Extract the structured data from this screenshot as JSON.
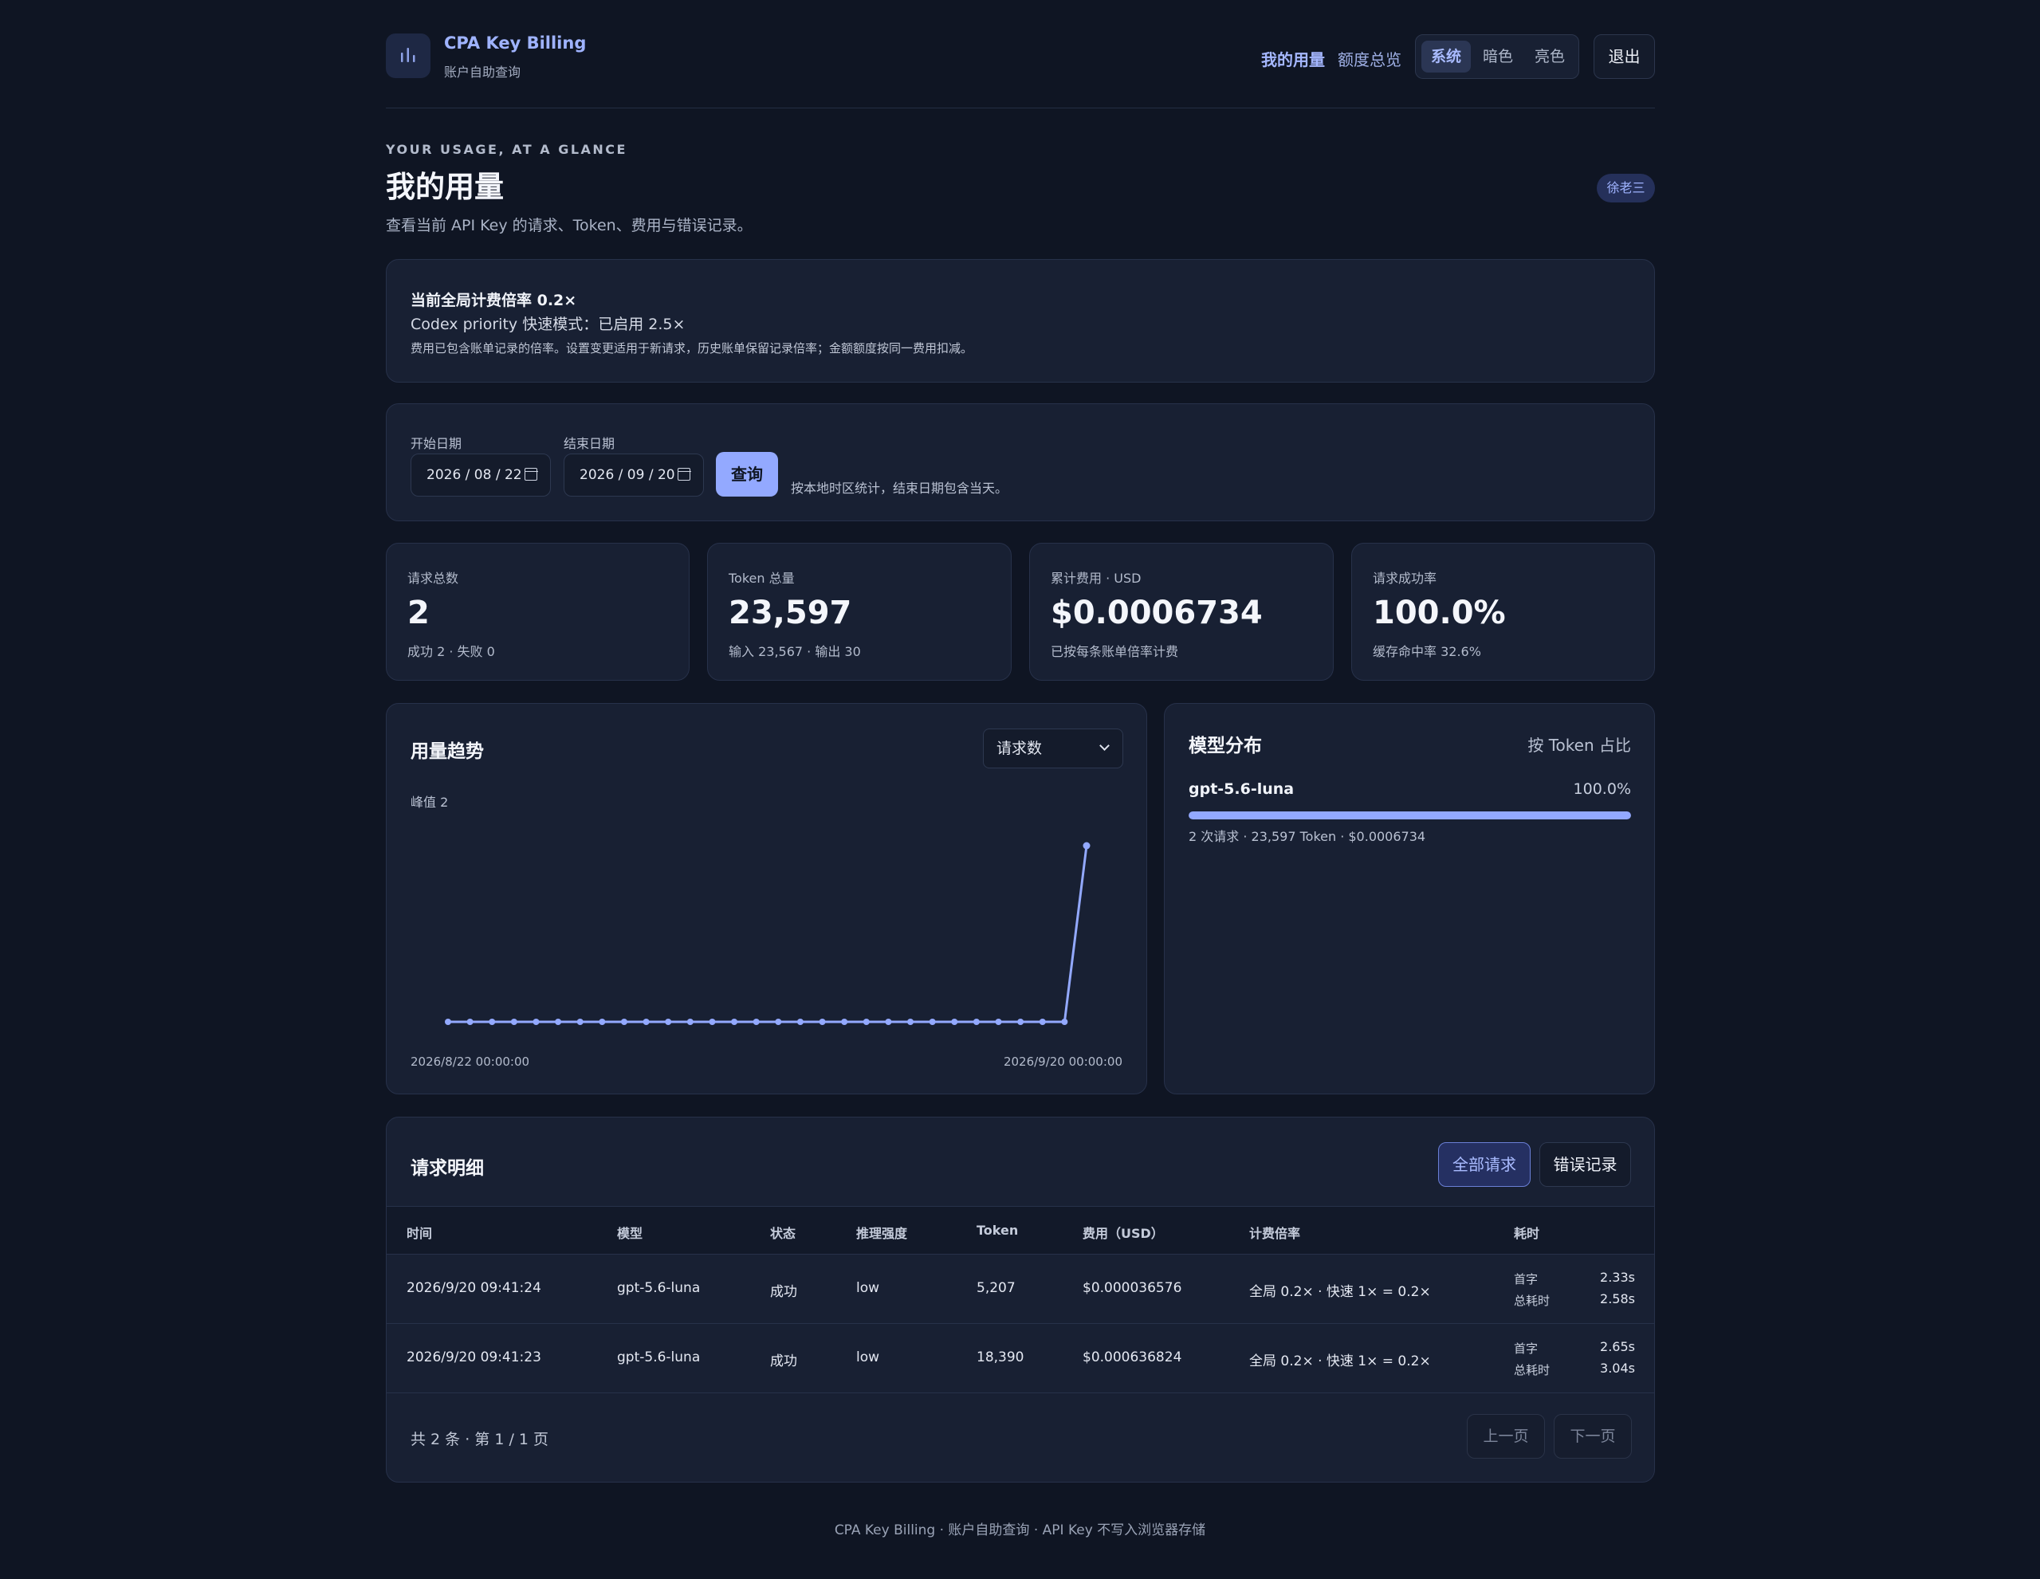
{
  "header": {
    "brand": "CPA Key Billing",
    "brand_sub": "账户自助查询",
    "nav": {
      "active": "我的用量",
      "overview": "额度总览"
    },
    "theme": {
      "system": "系统",
      "dark": "暗色",
      "light": "亮色"
    },
    "logout": "退出"
  },
  "hero": {
    "eyebrow": "YOUR USAGE, AT A GLANCE",
    "title": "我的用量",
    "subtitle": "查看当前 API Key 的请求、Token、费用与错误记录。",
    "user": "徐老三"
  },
  "rate": {
    "title": "当前全局计费倍率 0.2×",
    "priority": "Codex priority 快速模式：已启用 2.5×",
    "note": "费用已包含账单记录的倍率。设置变更适用于新请求，历史账单保留记录倍率；金额额度按同一费用扣减。"
  },
  "query": {
    "start_label": "开始日期",
    "start_value": "2026 / 08 / 22",
    "end_label": "结束日期",
    "end_value": "2026 / 09 / 20",
    "button": "查询",
    "note": "按本地时区统计，结束日期包含当天。"
  },
  "stats": [
    {
      "label": "请求总数",
      "value": "2",
      "sub": "成功 2 · 失败 0"
    },
    {
      "label": "Token 总量",
      "value": "23,597",
      "sub": "输入 23,567 · 输出 30"
    },
    {
      "label": "累计费用 · USD",
      "value": "$0.0006734",
      "sub": "已按每条账单倍率计费"
    },
    {
      "label": "请求成功率",
      "value": "100.0%",
      "sub": "缓存命中率 32.6%"
    }
  ],
  "trend": {
    "title": "用量趋势",
    "metric": "请求数",
    "peak": "峰值 2",
    "start_label": "2026/8/22 00:00:00",
    "end_label": "2026/9/20 00:00:00"
  },
  "chart_data": {
    "type": "line",
    "x_range": [
      "2026/8/22 00:00:00",
      "2026/9/20 00:00:00"
    ],
    "values": [
      0,
      0,
      0,
      0,
      0,
      0,
      0,
      0,
      0,
      0,
      0,
      0,
      0,
      0,
      0,
      0,
      0,
      0,
      0,
      0,
      0,
      0,
      0,
      0,
      0,
      0,
      0,
      0,
      0,
      2
    ],
    "ylim": [
      0,
      2
    ],
    "color": "#93a9ff"
  },
  "distribution": {
    "title": "模型分布",
    "hint": "按 Token 占比",
    "model": "gpt-5.6-luna",
    "pct_label": "100.0%",
    "share": 1.0,
    "meta": "2 次请求 · 23,597 Token · $0.0006734"
  },
  "details": {
    "title": "请求明细",
    "tab_all": "全部请求",
    "tab_errors": "错误记录",
    "columns": [
      "时间",
      "模型",
      "状态",
      "推理强度",
      "Token",
      "费用（USD）",
      "计费倍率",
      "耗时"
    ],
    "rows": [
      {
        "time": "2026/9/20 09:41:24",
        "model": "gpt-5.6-luna",
        "status": "成功",
        "effort": "low",
        "token": "5,207",
        "cost": "$0.000036576",
        "rate": "全局 0.2× · 快速 1× = 0.2×",
        "first_label": "首字",
        "first": "2.33s",
        "total_label": "总耗时",
        "total": "2.58s"
      },
      {
        "time": "2026/9/20 09:41:23",
        "model": "gpt-5.6-luna",
        "status": "成功",
        "effort": "low",
        "token": "18,390",
        "cost": "$0.000636824",
        "rate": "全局 0.2× · 快速 1× = 0.2×",
        "first_label": "首字",
        "first": "2.65s",
        "total_label": "总耗时",
        "total": "3.04s"
      }
    ],
    "page_info": "共 2 条 · 第 1 / 1 页",
    "prev": "上一页",
    "next": "下一页"
  },
  "footer": "CPA Key Billing · 账户自助查询 · API Key 不写入浏览器存储"
}
